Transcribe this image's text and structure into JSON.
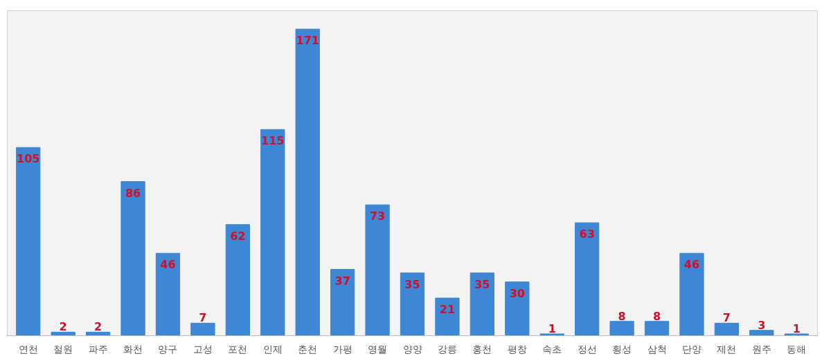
{
  "chart_data": {
    "type": "bar",
    "categories": [
      "연천",
      "철원",
      "파주",
      "화천",
      "양구",
      "고성",
      "포천",
      "인제",
      "춘천",
      "가평",
      "영월",
      "양양",
      "강릉",
      "홍천",
      "평창",
      "속초",
      "정선",
      "횡성",
      "삼척",
      "단양",
      "제천",
      "원주",
      "동해"
    ],
    "values": [
      105,
      2,
      2,
      86,
      46,
      7,
      62,
      115,
      171,
      37,
      73,
      35,
      21,
      35,
      30,
      1,
      63,
      8,
      8,
      46,
      7,
      3,
      1
    ],
    "color": "#3d87d4",
    "data_labels": true,
    "grid": false
  }
}
